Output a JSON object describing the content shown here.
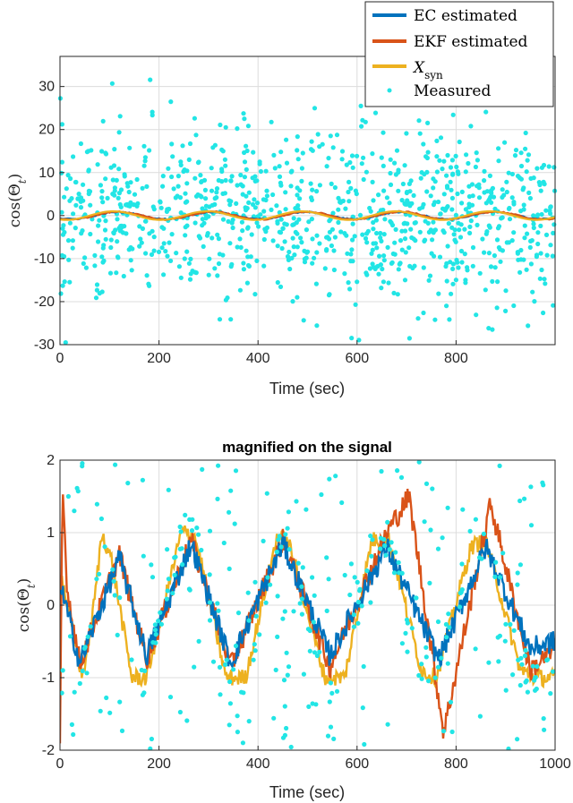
{
  "chart_data": [
    {
      "type": "line",
      "xlabel": "Time (sec)",
      "ylabel": "cos(Θ",
      "ylabel_sub": "t",
      "ylabel_close": ")",
      "xlim": [
        0,
        1000
      ],
      "ylim": [
        -30,
        37
      ],
      "xticks": [
        0,
        200,
        400,
        600,
        800
      ],
      "yticks": [
        -30,
        -20,
        -10,
        0,
        10,
        20,
        30
      ],
      "legend": {
        "placement": "top-right",
        "entries": [
          {
            "label": "EC estimated",
            "color": "#0072BD"
          },
          {
            "label": "EKF estimated",
            "color": "#D95319"
          },
          {
            "label": "X",
            "sub": "syn",
            "color": "#EDB120"
          },
          {
            "label": "Measured",
            "color": "#22E5E5"
          }
        ]
      },
      "series": [
        {
          "name": "EC estimated",
          "color": "#0072BD",
          "period": 190,
          "phase": 70,
          "amp": 0.8
        },
        {
          "name": "EKF estimated",
          "color": "#D95319",
          "period": 190,
          "phase": 70,
          "amp": 0.9
        },
        {
          "name": "X_syn",
          "color": "#EDB120",
          "period": 190,
          "phase": 60,
          "amp": 1.0
        },
        {
          "name": "Measured",
          "color": "#22E5E5",
          "count": 1000,
          "spread": 10
        }
      ]
    },
    {
      "type": "line",
      "title": "magnified on the signal",
      "xlabel": "Time (sec)",
      "ylabel": "cos(Θ",
      "ylabel_sub": "t",
      "ylabel_close": ")",
      "xlim": [
        0,
        1000
      ],
      "ylim": [
        -2,
        2
      ],
      "xticks": [
        0,
        200,
        400,
        600,
        800,
        1000
      ],
      "yticks": [
        -2,
        -1,
        0,
        1,
        2
      ],
      "series": [
        {
          "name": "EC estimated",
          "color": "#0072BD",
          "x": [
            0,
            40,
            120,
            175,
            265,
            345,
            450,
            545,
            660,
            765,
            860,
            950,
            1000
          ],
          "y": [
            0.3,
            -0.8,
            0.65,
            -0.7,
            0.85,
            -0.8,
            0.85,
            -0.7,
            0.8,
            -0.75,
            0.8,
            -0.6,
            -0.5
          ]
        },
        {
          "name": "EKF estimated",
          "color": "#D95319",
          "x": [
            0,
            5,
            15,
            40,
            120,
            175,
            265,
            345,
            450,
            545,
            660,
            705,
            775,
            870,
            950,
            1000
          ],
          "y": [
            -1.9,
            1.65,
            0.2,
            -0.8,
            0.7,
            -0.75,
            0.9,
            -0.85,
            0.9,
            -0.85,
            1.0,
            1.5,
            -1.75,
            1.4,
            -0.9,
            -0.6
          ]
        },
        {
          "name": "X_syn",
          "color": "#EDB120",
          "x": [
            0,
            45,
            65,
            85,
            105,
            145,
            175,
            245,
            270,
            285,
            335,
            375,
            440,
            465,
            535,
            575,
            630,
            665,
            730,
            760,
            830,
            860,
            930,
            960,
            1000
          ],
          "y": [
            0.5,
            -1.0,
            -0.2,
            1.0,
            0.6,
            -1.0,
            -1.0,
            1.0,
            1.0,
            0.6,
            -1.0,
            -1.0,
            1.0,
            0.8,
            -1.0,
            -1.0,
            0.9,
            0.9,
            -0.9,
            -1.0,
            0.8,
            0.9,
            -0.9,
            -1.0,
            -1.0
          ]
        },
        {
          "name": "Measured",
          "color": "#22E5E5",
          "count": 320
        }
      ]
    }
  ]
}
